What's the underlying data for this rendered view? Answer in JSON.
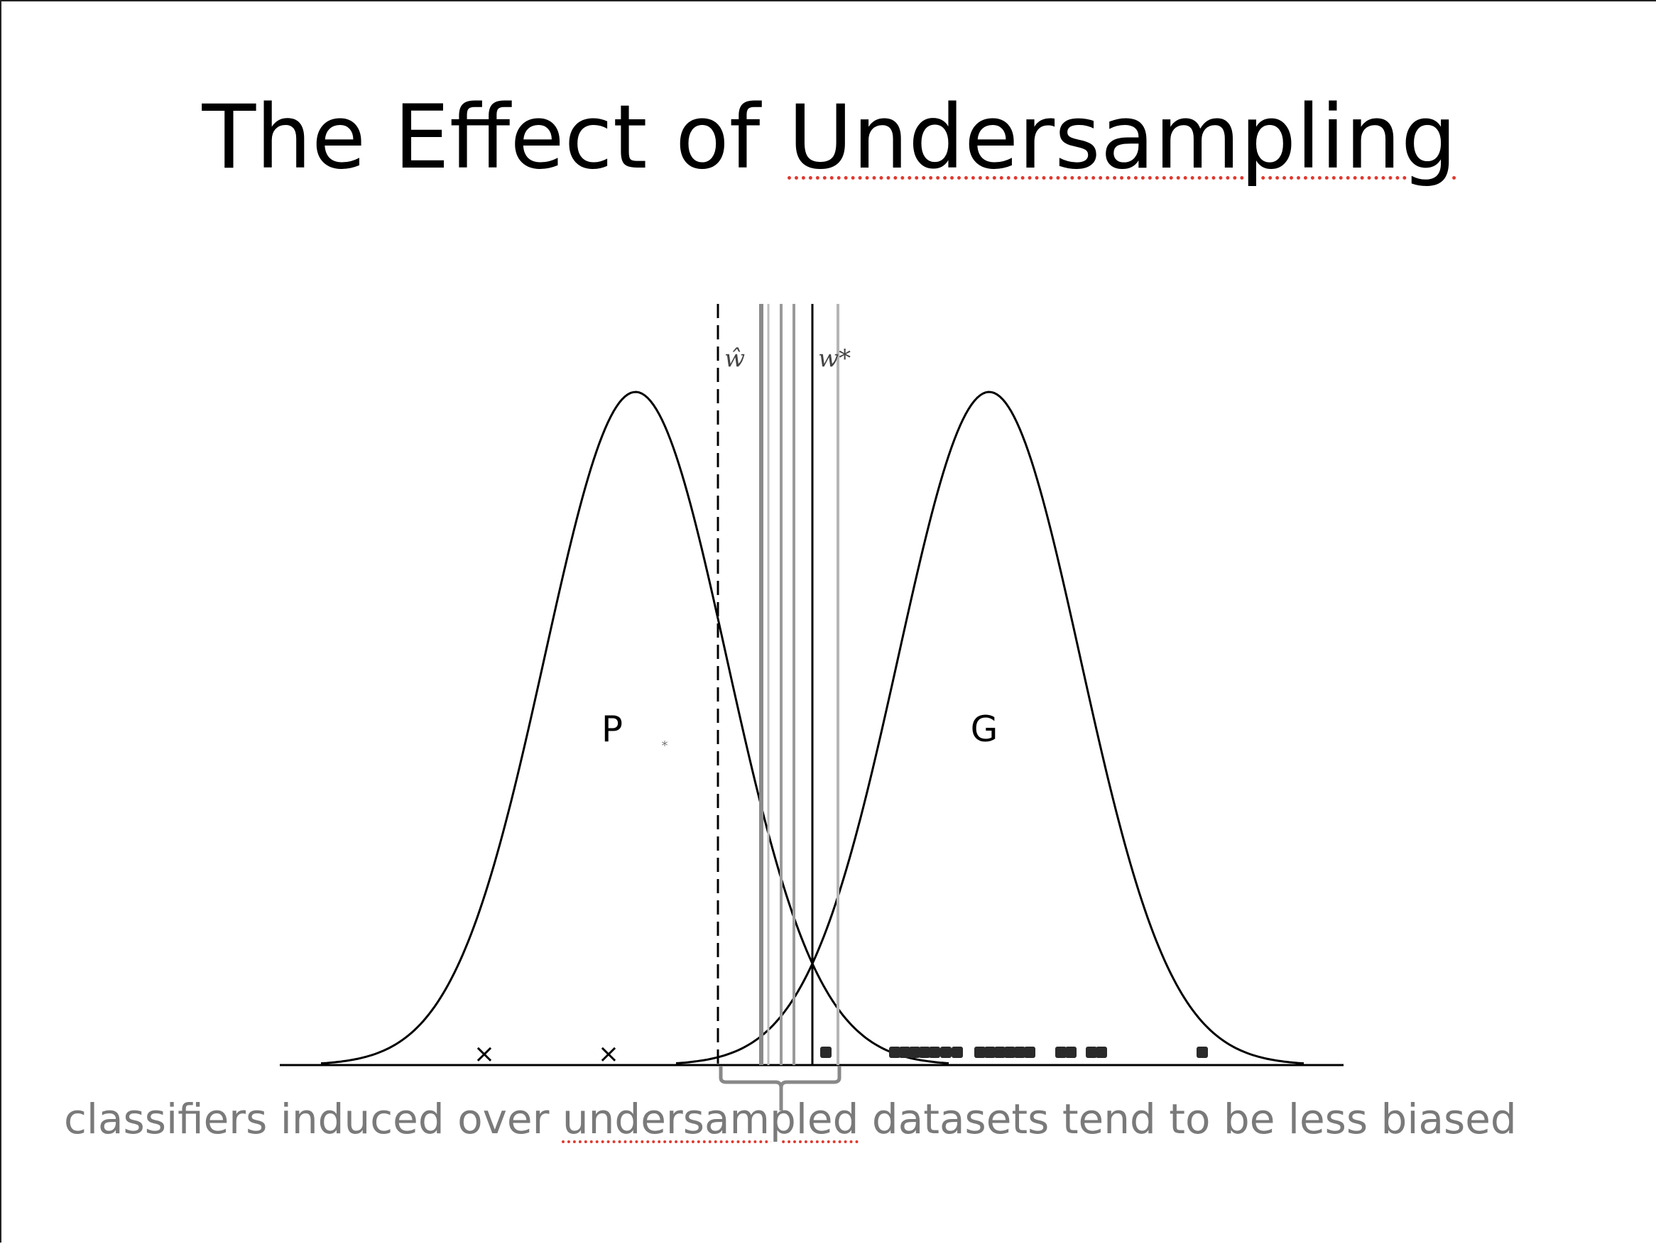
{
  "slide": {
    "title": {
      "before": "The Effect of ",
      "misspelled": "Undersampling",
      "after": ""
    },
    "caption": {
      "before": "classifiers induced over ",
      "misspelled": "undersampled",
      "after": " datasets tend to be less biased"
    }
  },
  "diagram": {
    "left_class_label": "P",
    "right_class_label": "G",
    "w_hat_label": "ŵ",
    "w_star_label": "w*",
    "minority_marker": "×",
    "colors": {
      "curves": "#000000",
      "dashed_line": "#000000",
      "boundary_lines_gray": "#9a9a9a",
      "brace": "#888888",
      "spellcheck_underline": "#e03a2f"
    }
  }
}
